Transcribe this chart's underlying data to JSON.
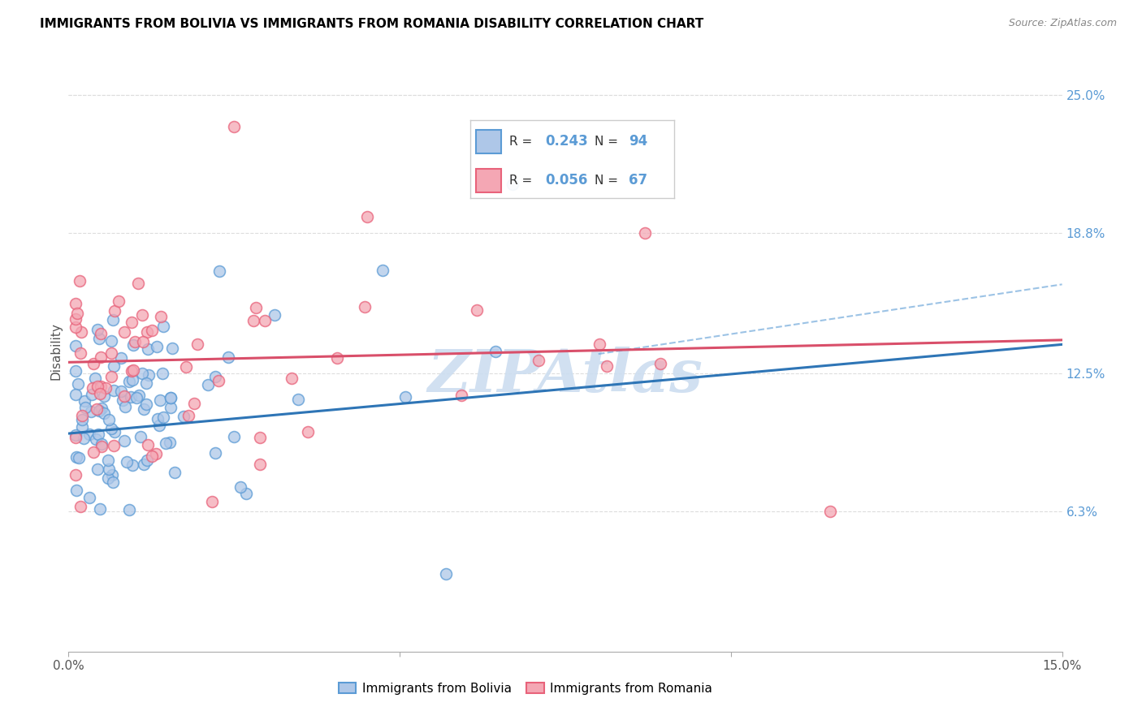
{
  "title": "IMMIGRANTS FROM BOLIVIA VS IMMIGRANTS FROM ROMANIA DISABILITY CORRELATION CHART",
  "source": "Source: ZipAtlas.com",
  "ylabel": "Disability",
  "x_min": 0.0,
  "x_max": 0.15,
  "y_min": 0.0,
  "y_max": 0.27,
  "y_ticks_right": [
    0.063,
    0.125,
    0.188,
    0.25
  ],
  "y_tick_labels_right": [
    "6.3%",
    "12.5%",
    "18.8%",
    "25.0%"
  ],
  "bolivia_R": 0.243,
  "bolivia_N": 94,
  "romania_R": 0.056,
  "romania_N": 67,
  "bolivia_color": "#5b9bd5",
  "romania_color": "#e8627a",
  "bolivia_line_color": "#2e75b6",
  "romania_line_color": "#d94f6a",
  "bolivia_marker_fill": "#aec7e8",
  "romania_marker_fill": "#f4a7b4",
  "watermark_text": "ZIPAtlas",
  "watermark_color": "#ccddf0",
  "legend_box_color": "#4472c4",
  "bolivia_line_start_y": 0.098,
  "bolivia_line_end_y": 0.138,
  "romania_line_start_y": 0.13,
  "romania_line_end_y": 0.14
}
